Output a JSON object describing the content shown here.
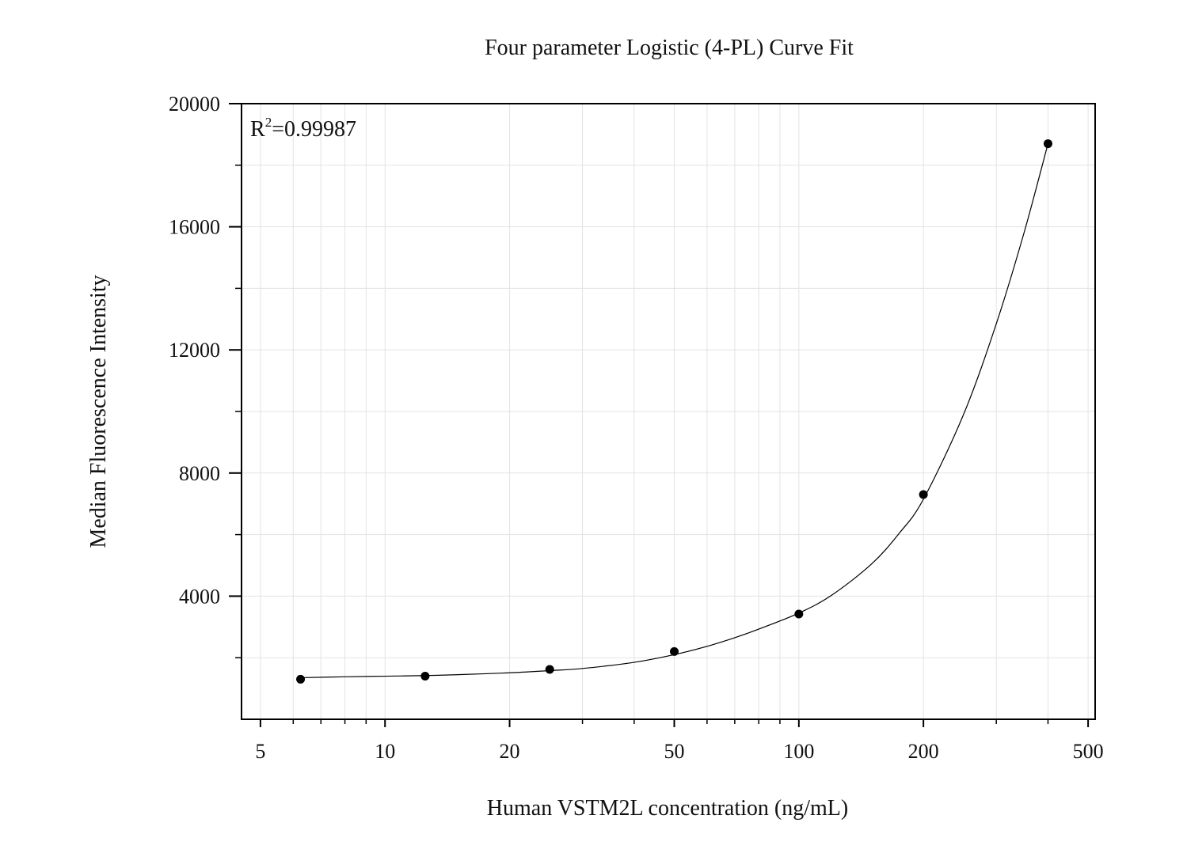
{
  "chart_data": {
    "type": "scatter",
    "title": "Four parameter Logistic (4-PL) Curve Fit",
    "xlabel": "Human VSTM2L concentration (ng/mL)",
    "ylabel": "Median Fluorescence Intensity",
    "x_scale": "log10",
    "xlim": [
      4.5,
      520
    ],
    "ylim": [
      0,
      20000
    ],
    "x_ticks": [
      5,
      10,
      20,
      50,
      100,
      200,
      500
    ],
    "x_tick_labels": [
      "5",
      "10",
      "20",
      "50",
      "100",
      "200",
      "500"
    ],
    "y_ticks": [
      4000,
      8000,
      12000,
      16000,
      20000
    ],
    "y_tick_labels": [
      "4000",
      "8000",
      "12000",
      "16000",
      "20000"
    ],
    "y_minor_ticks": [
      2000,
      6000,
      10000,
      14000,
      18000
    ],
    "grid": true,
    "annotation": {
      "r_symbol": "R",
      "r_superscript": "2",
      "r_value": "=0.99987"
    },
    "series": [
      {
        "kind": "points",
        "x": [
          6.25,
          12.5,
          25,
          50,
          100,
          200,
          400
        ],
        "y": [
          1300,
          1400,
          1620,
          2200,
          3420,
          7300,
          18700
        ]
      },
      {
        "kind": "fit-curve",
        "x": [
          6.25,
          8,
          10,
          12.5,
          15,
          20,
          25,
          30,
          40,
          50,
          60,
          70,
          80,
          100,
          120,
          150,
          175,
          200,
          250,
          300,
          350,
          400
        ],
        "y": [
          1350,
          1380,
          1400,
          1420,
          1450,
          1510,
          1580,
          1650,
          1850,
          2100,
          2370,
          2650,
          2930,
          3450,
          4030,
          5050,
          6050,
          7150,
          9900,
          12850,
          15800,
          18700
        ]
      }
    ]
  }
}
